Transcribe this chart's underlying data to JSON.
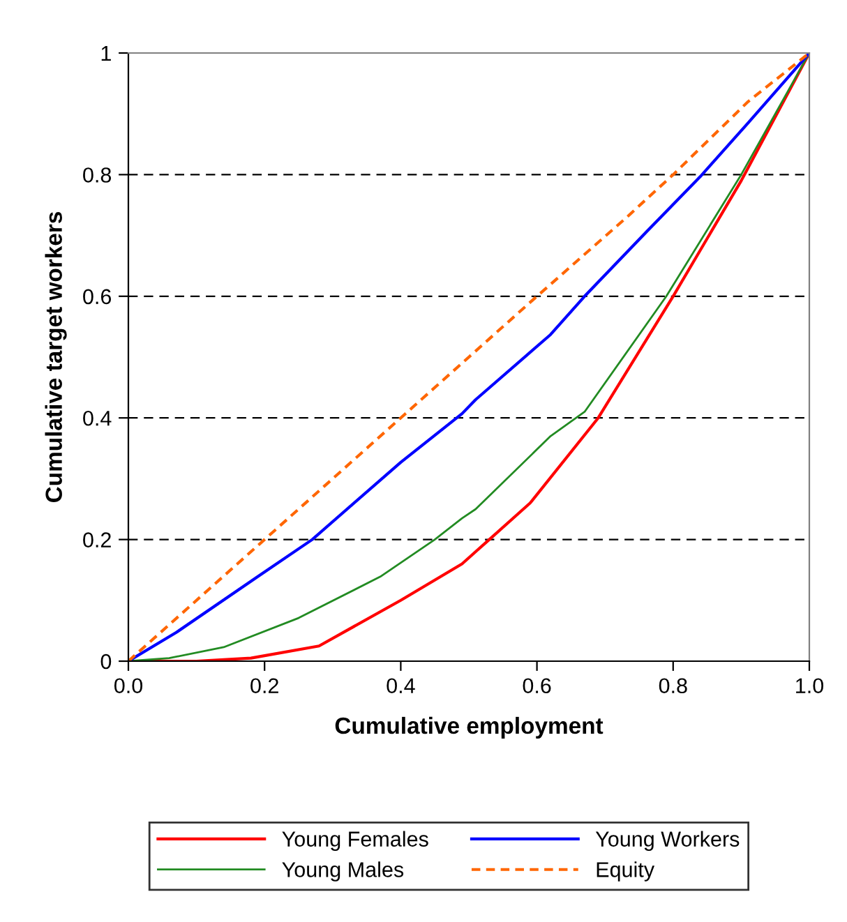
{
  "chart_data": {
    "type": "line",
    "xlabel": "Cumulative employment",
    "ylabel": "Cumulative target workers",
    "xlim": [
      0,
      1
    ],
    "ylim": [
      0,
      1
    ],
    "xticks": [
      {
        "value": 0,
        "label": "0.0"
      },
      {
        "value": 0.2,
        "label": "0.2"
      },
      {
        "value": 0.4,
        "label": "0.4"
      },
      {
        "value": 0.6,
        "label": "0.6"
      },
      {
        "value": 0.8,
        "label": "0.8"
      },
      {
        "value": 1,
        "label": "1.0"
      }
    ],
    "yticks": [
      0,
      0.2,
      0.4,
      0.6,
      0.8,
      1
    ],
    "grid": "y",
    "legend": "bottom",
    "series": [
      {
        "name": "Young Females",
        "color": "#ff0000",
        "line_style": "solid",
        "x": [
          0,
          0.1,
          0.18,
          0.28,
          0.4,
          0.49,
          0.51,
          0.53,
          0.59,
          0.69,
          0.8,
          0.9,
          1
        ],
        "values": [
          0,
          0,
          0.005,
          0.025,
          0.1,
          0.16,
          0.18,
          0.2,
          0.26,
          0.4,
          0.6,
          0.79,
          1
        ]
      },
      {
        "name": "Young Males",
        "color": "#228b22",
        "line_style": "solid",
        "x": [
          0,
          0.06,
          0.14,
          0.25,
          0.37,
          0.45,
          0.49,
          0.51,
          0.62,
          0.67,
          0.79,
          0.9,
          1
        ],
        "values": [
          0,
          0.005,
          0.023,
          0.071,
          0.139,
          0.2,
          0.235,
          0.25,
          0.37,
          0.41,
          0.6,
          0.8,
          1
        ]
      },
      {
        "name": "Young Workers",
        "color": "#0000ff",
        "line_style": "solid",
        "x": [
          0,
          0.07,
          0.19,
          0.27,
          0.4,
          0.49,
          0.51,
          0.62,
          0.67,
          0.76,
          0.84,
          0.91,
          1
        ],
        "values": [
          0,
          0.047,
          0.139,
          0.2,
          0.327,
          0.407,
          0.43,
          0.537,
          0.6,
          0.705,
          0.797,
          0.885,
          1
        ]
      },
      {
        "name": "Equity",
        "color": "#ff6600",
        "line_style": "dashed",
        "x": [
          0,
          0.2,
          0.4,
          0.49,
          0.53,
          0.6,
          0.73,
          0.8,
          0.91,
          1
        ],
        "values": [
          0,
          0.2,
          0.4,
          0.49,
          0.53,
          0.6,
          0.728,
          0.8,
          0.92,
          1
        ]
      }
    ]
  }
}
